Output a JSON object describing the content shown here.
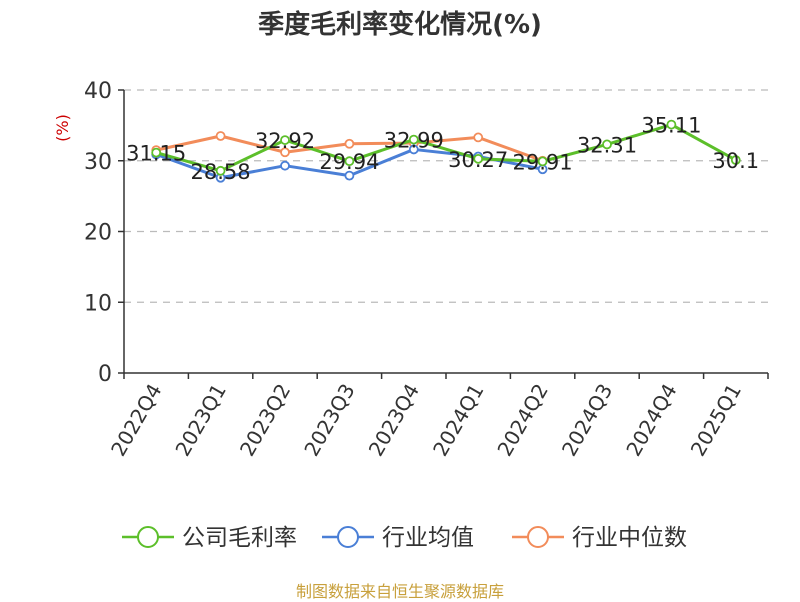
{
  "chart_data": {
    "type": "line",
    "title": "季度毛利率变化情况(%)",
    "ylabel": "(%)",
    "xlabel": "",
    "ylim": [
      0,
      40
    ],
    "yticks": [
      0,
      10,
      20,
      30,
      40
    ],
    "grid": true,
    "legend_position": "bottom",
    "categories": [
      "2022Q4",
      "2023Q1",
      "2023Q2",
      "2023Q3",
      "2023Q4",
      "2024Q1",
      "2024Q2",
      "2024Q3",
      "2024Q4",
      "2025Q1"
    ],
    "series": [
      {
        "name": "公司毛利率",
        "color": "#5cbf2a",
        "values": [
          31.15,
          28.58,
          32.92,
          29.94,
          32.99,
          30.27,
          29.91,
          32.31,
          35.11,
          30.1
        ],
        "labels": [
          "31.15",
          "28.58",
          "32.92",
          "29.94",
          "32.99",
          "30.27",
          "29.91",
          "32.31",
          "35.11",
          "30.1"
        ]
      },
      {
        "name": "行业均值",
        "color": "#4a7fd6",
        "values": [
          30.9,
          27.6,
          29.3,
          27.9,
          31.6,
          30.6,
          28.8,
          null,
          null,
          null
        ]
      },
      {
        "name": "行业中位数",
        "color": "#f28c5a",
        "values": [
          31.5,
          33.5,
          31.2,
          32.4,
          32.5,
          33.3,
          30.0,
          null,
          null,
          null
        ]
      }
    ],
    "source": "制图数据来自恒生聚源数据库"
  }
}
